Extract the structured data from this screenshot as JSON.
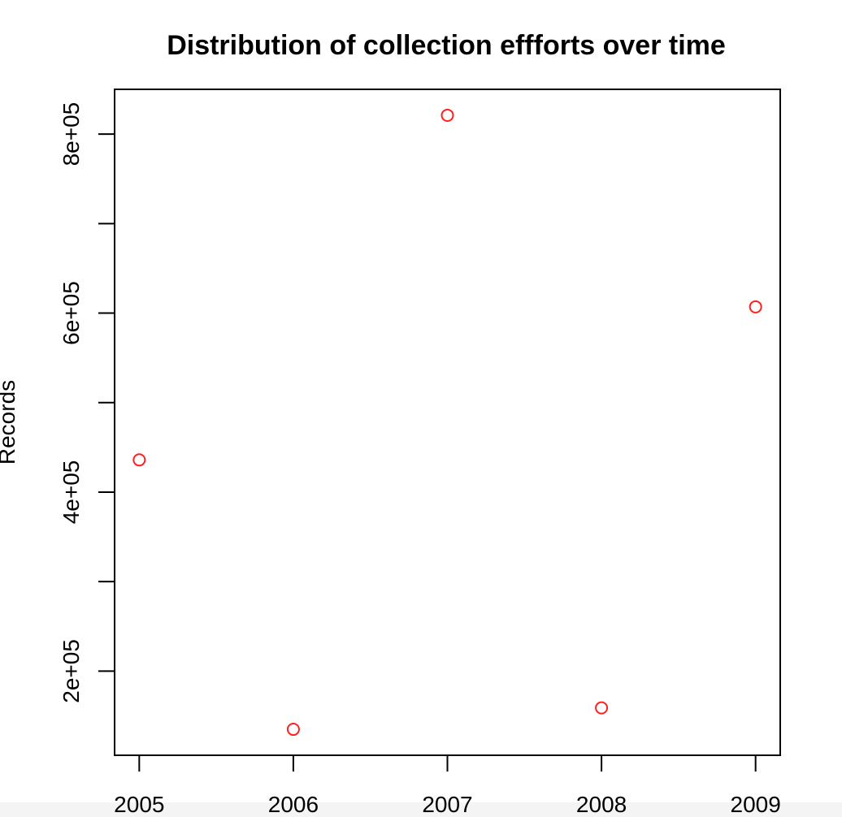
{
  "chart_data": {
    "type": "scatter",
    "title": "Distribution of collection effforts over time",
    "xlabel": "",
    "ylabel": "Records",
    "x": [
      2005,
      2006,
      2007,
      2008,
      2009
    ],
    "y": [
      436000,
      135000,
      821000,
      159000,
      607000
    ],
    "xlim": [
      2004.84,
      2009.16
    ],
    "ylim": [
      106000,
      850000
    ],
    "x_ticks": [
      {
        "value": 2005,
        "label": "2005"
      },
      {
        "value": 2006,
        "label": "2006"
      },
      {
        "value": 2007,
        "label": "2007"
      },
      {
        "value": 2008,
        "label": "2008"
      },
      {
        "value": 2009,
        "label": "2009"
      }
    ],
    "y_ticks": [
      {
        "value": 200000,
        "label": "2e+05"
      },
      {
        "value": 300000,
        "label": ""
      },
      {
        "value": 400000,
        "label": "4e+05"
      },
      {
        "value": 500000,
        "label": ""
      },
      {
        "value": 600000,
        "label": "6e+05"
      },
      {
        "value": 700000,
        "label": ""
      },
      {
        "value": 800000,
        "label": "8e+05"
      }
    ],
    "grid": false,
    "legend": "none",
    "marker": "open-circle",
    "marker_color": "#ff2020"
  }
}
